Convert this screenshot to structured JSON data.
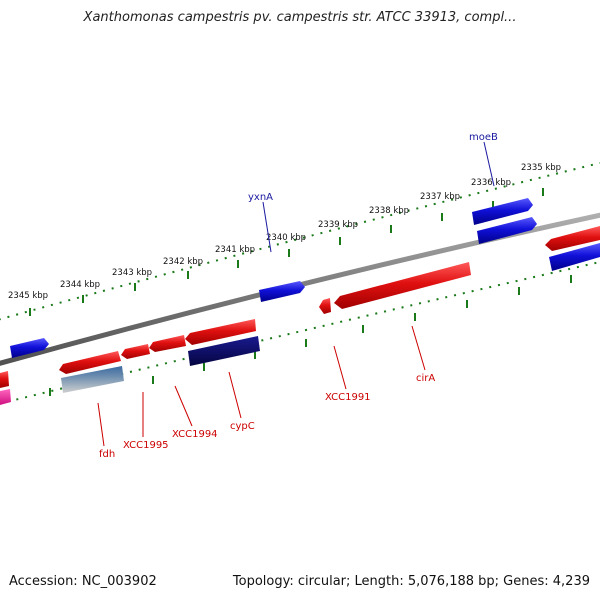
{
  "title": "Xanthomonas campestris pv. campestris str. ATCC 33913, compl...",
  "accession": "Accession: NC_003902",
  "summary": "Topology: circular; Length: 5,076,188 bp; Genes: 4,239",
  "colors": {
    "backbone": "#7a7a7a",
    "tick": "#1a7a1a",
    "forward_gene": "#e01010",
    "reverse_gene": "#1010d8",
    "dark_gene": "#0a0a70",
    "forward_label": "#cc0000",
    "reverse_label": "#1a1aa0"
  },
  "kbp_labels": [
    "2345 kbp",
    "2344 kbp",
    "2343 kbp",
    "2342 kbp",
    "2341 kbp",
    "2340 kbp",
    "2339 kbp",
    "2338 kbp",
    "2337 kbp",
    "2336 kbp",
    "2335 kbp"
  ],
  "gene_labels": {
    "moeB": "moeB",
    "yxnA": "yxnA",
    "fdh": "fdh",
    "XCC1995": "XCC1995",
    "XCC1994": "XCC1994",
    "cypC": "cypC",
    "XCC1991": "XCC1991",
    "cirA": "cirA"
  }
}
